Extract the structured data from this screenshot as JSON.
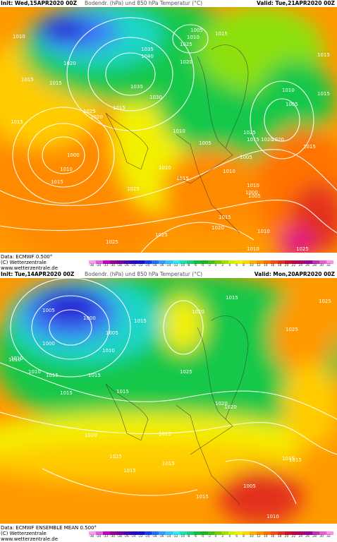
{
  "panels": [
    {
      "init": "Init: Wed,15APR2020 00Z",
      "title": "Bodendr. (hPa) und 850 hPa Temperatur (°C)",
      "valid": "Valid: Tue,21APR2020 00Z",
      "data_line": "Data: ECMWF   0.500°",
      "copyright": "(C) Wetterzentrale",
      "url": "www.wetterzentrale.de",
      "isobar_labels": [
        "1010",
        "1015",
        "1015",
        "1020",
        "1025",
        "1030",
        "1035",
        "1040",
        "1035",
        "1025",
        "1020",
        "1015",
        "1010",
        "1005",
        "1010",
        "1015",
        "1010",
        "1015",
        "1010",
        "1005",
        "1000",
        "1010",
        "1015",
        "1020",
        "1025",
        "1015",
        "1010",
        "1015",
        "1020",
        "1025",
        "1020",
        "1015",
        "1010",
        "1005",
        "1000",
        "1005",
        "1015",
        "1015",
        "1025",
        "1020",
        "1025",
        "1010",
        "1015",
        "1010",
        "1005",
        "1025"
      ]
    },
    {
      "init": "Init: Tue,14APR2020 00Z",
      "title": "Bodendr. (hPa) und 850 hPa Temperatur (°C)",
      "valid": "Valid: Mon,20APR2020 00Z",
      "data_line": "Data: ECMWF ENSEMBLE MEAN 0.500°",
      "copyright": "(C) Wetterzentrale",
      "url": "www.wetterzentrale.de",
      "isobar_labels": [
        "1005",
        "1000",
        "1005",
        "1015",
        "1010",
        "1000",
        "1015",
        "1010",
        "1015",
        "1020",
        "1025",
        "1015",
        "1015",
        "1025",
        "1020",
        "1015",
        "1010",
        "1015",
        "1020",
        "1025",
        "1015",
        "1025",
        "1020",
        "1015",
        "1015",
        "1015",
        "1010",
        "1005",
        "1010",
        "1015"
      ]
    }
  ],
  "scale_ticks": [
    "-36",
    "-34",
    "-33",
    "-30",
    "-28",
    "-26",
    "-24",
    "-22",
    "-20",
    "-18",
    "-16",
    "-14",
    "-12",
    "-10",
    "-8",
    "-6",
    "-4",
    "-2",
    "0",
    "2",
    "4",
    "6",
    "8",
    "10",
    "12",
    "14",
    "16",
    "18",
    "20",
    "22",
    "24",
    "26",
    "28",
    "30",
    "32"
  ],
  "scale_colors": [
    "#f0a0f0",
    "#e060e0",
    "#c000c0",
    "#900090",
    "#7000a0",
    "#5000b0",
    "#3000c0",
    "#1010d0",
    "#1040f0",
    "#2070ff",
    "#30a0ff",
    "#30c8ff",
    "#30e8f0",
    "#20e0b0",
    "#20d070",
    "#10c040",
    "#20b020",
    "#40c010",
    "#70d000",
    "#a0e000",
    "#d0f000",
    "#f0f000",
    "#ffd800",
    "#ffb000",
    "#ff9000",
    "#ff7000",
    "#f05010",
    "#e03020",
    "#d01030",
    "#c00050",
    "#b00070",
    "#a00090",
    "#c030b0",
    "#e060d0",
    "#ff90f0"
  ],
  "colors": {
    "deep_blue": "#2a1fd6",
    "blue": "#3d7cf5",
    "cyan": "#1fd6c8",
    "green": "#18c84a",
    "lime": "#8de010",
    "yellow": "#f3f000",
    "amber": "#ffcc00",
    "orange": "#ff9a00",
    "dark_orange": "#ff7300",
    "red": "#e3321e",
    "magenta": "#e0108a"
  }
}
